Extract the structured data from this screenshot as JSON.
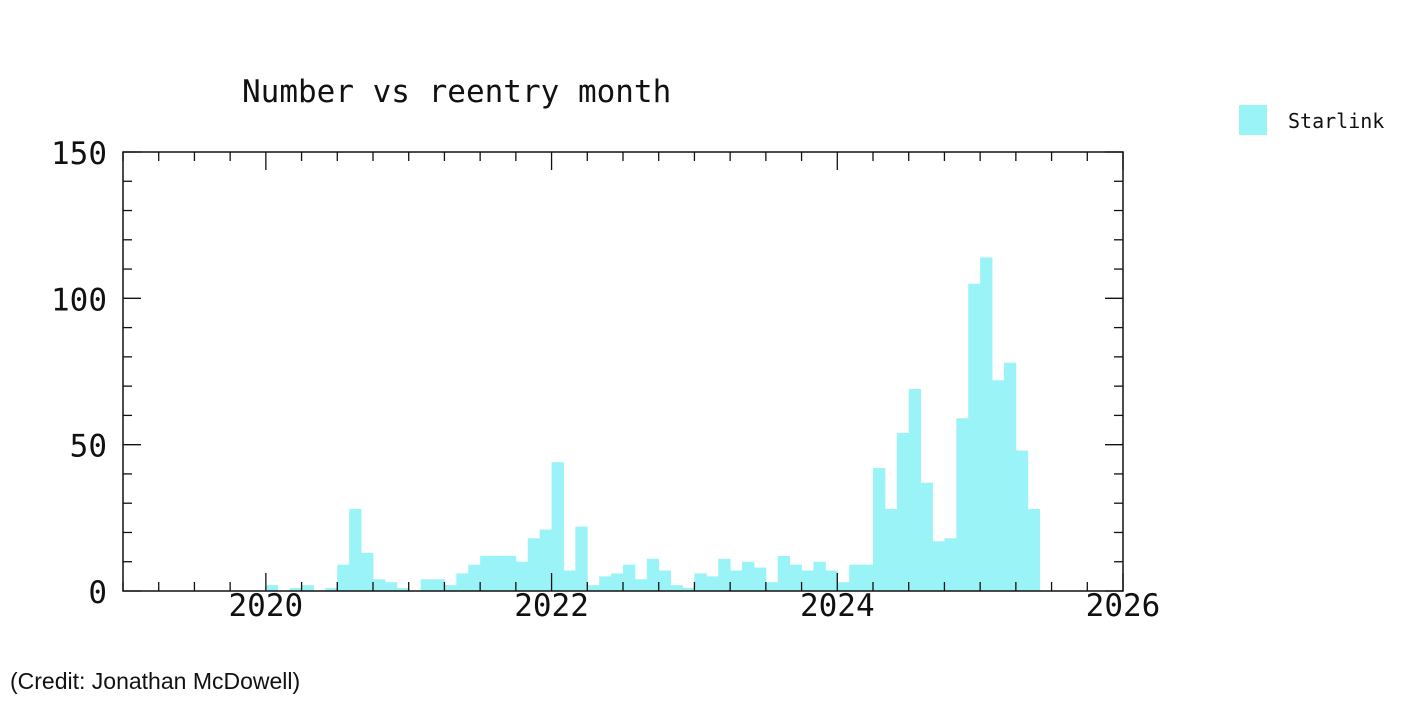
{
  "chart_data": {
    "type": "bar",
    "title": "Number vs reentry month",
    "xlabel": "",
    "ylabel": "",
    "xlim": [
      2019.0,
      2026.0
    ],
    "ylim": [
      0,
      150
    ],
    "x_ticks": [
      2020,
      2022,
      2024,
      2026
    ],
    "y_ticks": [
      0,
      50,
      100,
      150
    ],
    "grid": false,
    "legend_position": "top-right",
    "bar_width_months": 1,
    "series": [
      {
        "name": "Starlink",
        "color": "#9af3f6",
        "x": [
          "2020-01",
          "2020-02",
          "2020-03",
          "2020-04",
          "2020-05",
          "2020-06",
          "2020-07",
          "2020-08",
          "2020-09",
          "2020-10",
          "2020-11",
          "2020-12",
          "2021-01",
          "2021-02",
          "2021-03",
          "2021-04",
          "2021-05",
          "2021-06",
          "2021-07",
          "2021-08",
          "2021-09",
          "2021-10",
          "2021-11",
          "2021-12",
          "2022-01",
          "2022-02",
          "2022-03",
          "2022-04",
          "2022-05",
          "2022-06",
          "2022-07",
          "2022-08",
          "2022-09",
          "2022-10",
          "2022-11",
          "2022-12",
          "2023-01",
          "2023-02",
          "2023-03",
          "2023-04",
          "2023-05",
          "2023-06",
          "2023-07",
          "2023-08",
          "2023-09",
          "2023-10",
          "2023-11",
          "2023-12",
          "2024-01",
          "2024-02",
          "2024-03",
          "2024-04",
          "2024-05",
          "2024-06",
          "2024-07",
          "2024-08",
          "2024-09",
          "2024-10",
          "2024-11",
          "2024-12",
          "2025-01",
          "2025-02",
          "2025-03",
          "2025-04",
          "2025-05",
          "2025-06"
        ],
        "values": [
          2,
          0,
          1,
          2,
          0,
          1,
          9,
          28,
          13,
          4,
          3,
          1,
          0,
          4,
          4,
          2,
          6,
          9,
          12,
          12,
          12,
          10,
          18,
          21,
          44,
          7,
          22,
          2,
          5,
          6,
          9,
          4,
          11,
          7,
          2,
          1,
          6,
          5,
          11,
          7,
          10,
          8,
          3,
          12,
          9,
          7,
          10,
          7,
          3,
          9,
          9,
          42,
          28,
          54,
          69,
          37,
          17,
          18,
          59,
          105,
          114,
          72,
          78,
          48,
          28,
          0
        ]
      }
    ]
  },
  "credit": "(Credit: Jonathan McDowell)"
}
